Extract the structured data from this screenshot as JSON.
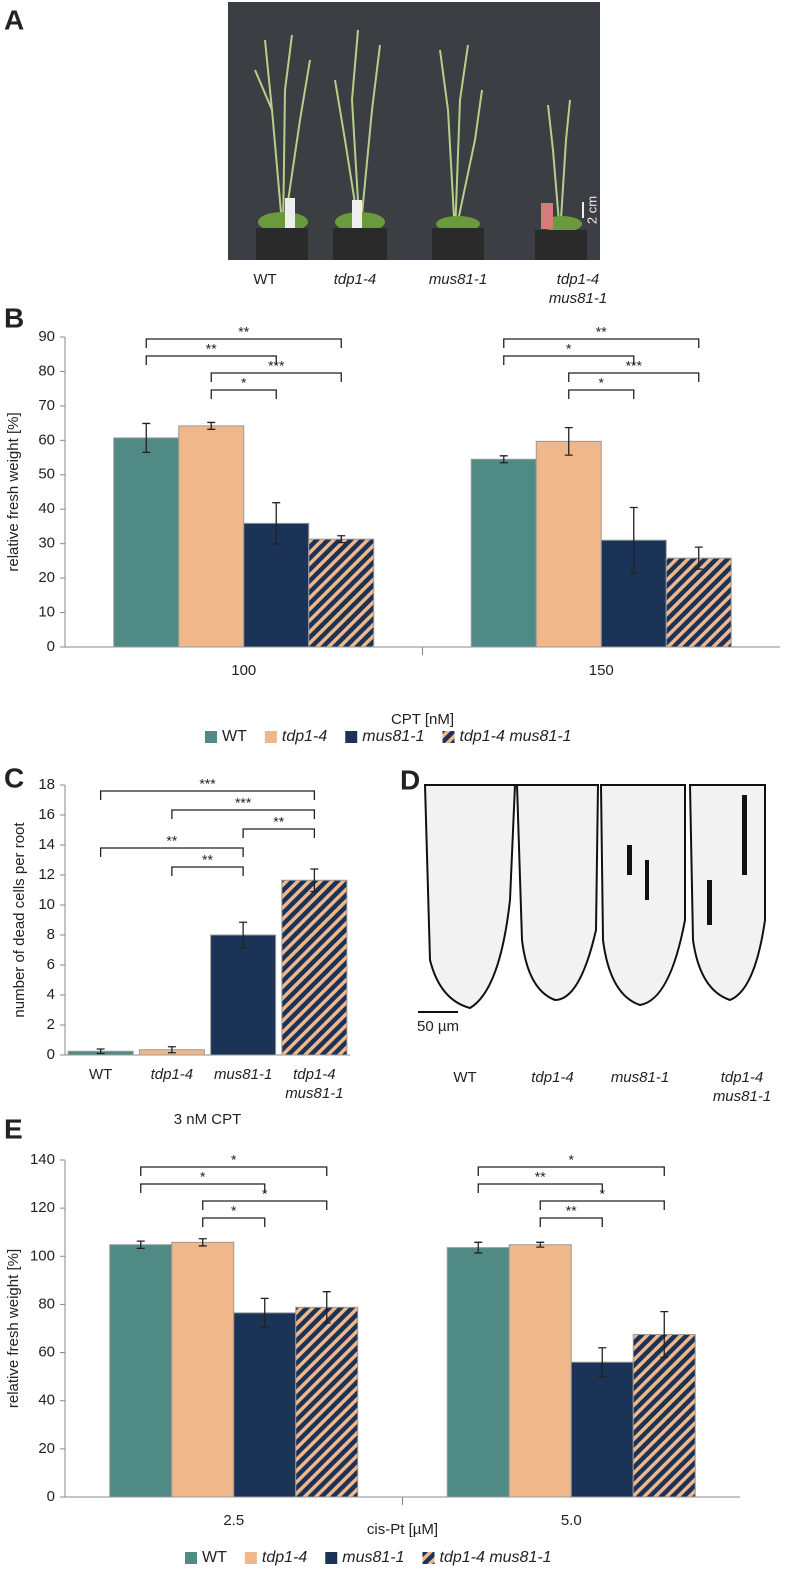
{
  "panel_a": {
    "panel": "A",
    "labels": [
      "WT",
      "tdp1-4",
      "mus81-1",
      "tdp1-4 mus81-1"
    ],
    "scale_label": "2 cm"
  },
  "panel_d": {
    "panel": "D",
    "labels": [
      "WT",
      "tdp1-4",
      "mus81-1",
      "tdp1-4 mus81-1"
    ],
    "scale_label": "50 µm"
  },
  "chart_data": [
    {
      "type": "bar",
      "panel": "B",
      "categories": [
        "100",
        "150"
      ],
      "series": [
        {
          "name": "WT",
          "color": "#4f8a85",
          "values": [
            60.7,
            54.5
          ],
          "errors": [
            4.2,
            1.0
          ]
        },
        {
          "name": "tdp1-4",
          "color": "#f0b88a",
          "values": [
            64.2,
            59.7
          ],
          "errors": [
            1.0,
            4.0
          ]
        },
        {
          "name": "mus81-1",
          "color": "#1c3358",
          "values": [
            35.9,
            31.0
          ],
          "errors": [
            6.0,
            9.5
          ]
        },
        {
          "name": "tdp1-4 mus81-1",
          "color": "#1c3358",
          "hatch_color": "#f0b88a",
          "values": [
            31.3,
            25.8
          ],
          "errors": [
            1.0,
            3.2
          ]
        }
      ],
      "xlabel": "CPT [nM]",
      "ylabel": "relative fresh weight [%]",
      "ylim": [
        0,
        90
      ],
      "yticks": [
        0,
        10,
        20,
        30,
        40,
        50,
        60,
        70,
        80,
        90
      ],
      "legend": "bottom",
      "annotations": [
        {
          "label": "**",
          "category": 0,
          "between": [
            0,
            3
          ]
        },
        {
          "label": "**",
          "category": 0,
          "between": [
            0,
            2
          ]
        },
        {
          "label": "***",
          "category": 0,
          "between": [
            1,
            3
          ]
        },
        {
          "label": "*",
          "category": 0,
          "between": [
            1,
            2
          ]
        },
        {
          "label": "**",
          "category": 1,
          "between": [
            0,
            3
          ]
        },
        {
          "label": "*",
          "category": 1,
          "between": [
            0,
            2
          ]
        },
        {
          "label": "***",
          "category": 1,
          "between": [
            1,
            3
          ]
        },
        {
          "label": "*",
          "category": 1,
          "between": [
            1,
            2
          ]
        }
      ]
    },
    {
      "type": "bar",
      "panel": "C",
      "categories": [
        "WT",
        "tdp1-4",
        "mus81-1",
        "tdp1-4 mus81-1"
      ],
      "values": [
        0.25,
        0.35,
        8.0,
        11.65
      ],
      "errors": [
        0.15,
        0.2,
        0.85,
        0.75
      ],
      "colors": [
        "#4f8a85",
        "#f0b88a",
        "#1c3358",
        "#1c3358"
      ],
      "hatched": [
        false,
        false,
        false,
        true
      ],
      "hatch_color": "#f0b88a",
      "xlabel": "3 nM CPT",
      "ylabel": "number of dead cells per root",
      "ylim": [
        0,
        18
      ],
      "yticks": [
        0,
        2,
        4,
        6,
        8,
        10,
        12,
        14,
        16,
        18
      ],
      "annotations": [
        {
          "label": "***",
          "between": [
            0,
            3
          ]
        },
        {
          "label": "***",
          "between": [
            1,
            3
          ]
        },
        {
          "label": "**",
          "between": [
            2,
            3
          ]
        },
        {
          "label": "**",
          "between": [
            0,
            2
          ]
        },
        {
          "label": "**",
          "between": [
            1,
            2
          ]
        }
      ]
    },
    {
      "type": "bar",
      "panel": "E",
      "categories": [
        "2.5",
        "5.0"
      ],
      "series": [
        {
          "name": "WT",
          "color": "#4f8a85",
          "values": [
            104.8,
            103.6
          ],
          "errors": [
            1.5,
            2.2
          ]
        },
        {
          "name": "tdp1-4",
          "color": "#f0b88a",
          "values": [
            105.8,
            104.8
          ],
          "errors": [
            1.5,
            1.0
          ]
        },
        {
          "name": "mus81-1",
          "color": "#1c3358",
          "values": [
            76.5,
            56.0
          ],
          "errors": [
            6.0,
            6.0
          ]
        },
        {
          "name": "tdp1-4 mus81-1",
          "color": "#1c3358",
          "hatch_color": "#f0b88a",
          "values": [
            78.8,
            67.5
          ],
          "errors": [
            6.5,
            9.5
          ]
        }
      ],
      "xlabel": "cis-Pt [µM]",
      "ylabel": "relative fresh weight [%]",
      "ylim": [
        0,
        140
      ],
      "yticks": [
        0,
        20,
        40,
        60,
        80,
        100,
        120,
        140
      ],
      "legend": "bottom",
      "annotations": [
        {
          "label": "*",
          "category": 0,
          "between": [
            0,
            3
          ]
        },
        {
          "label": "*",
          "category": 0,
          "between": [
            0,
            2
          ]
        },
        {
          "label": "*",
          "category": 0,
          "between": [
            1,
            3
          ]
        },
        {
          "label": "*",
          "category": 0,
          "between": [
            1,
            2
          ]
        },
        {
          "label": "*",
          "category": 1,
          "between": [
            0,
            3
          ]
        },
        {
          "label": "**",
          "category": 1,
          "between": [
            0,
            2
          ]
        },
        {
          "label": "*",
          "category": 1,
          "between": [
            1,
            3
          ]
        },
        {
          "label": "**",
          "category": 1,
          "between": [
            1,
            2
          ]
        }
      ]
    }
  ]
}
